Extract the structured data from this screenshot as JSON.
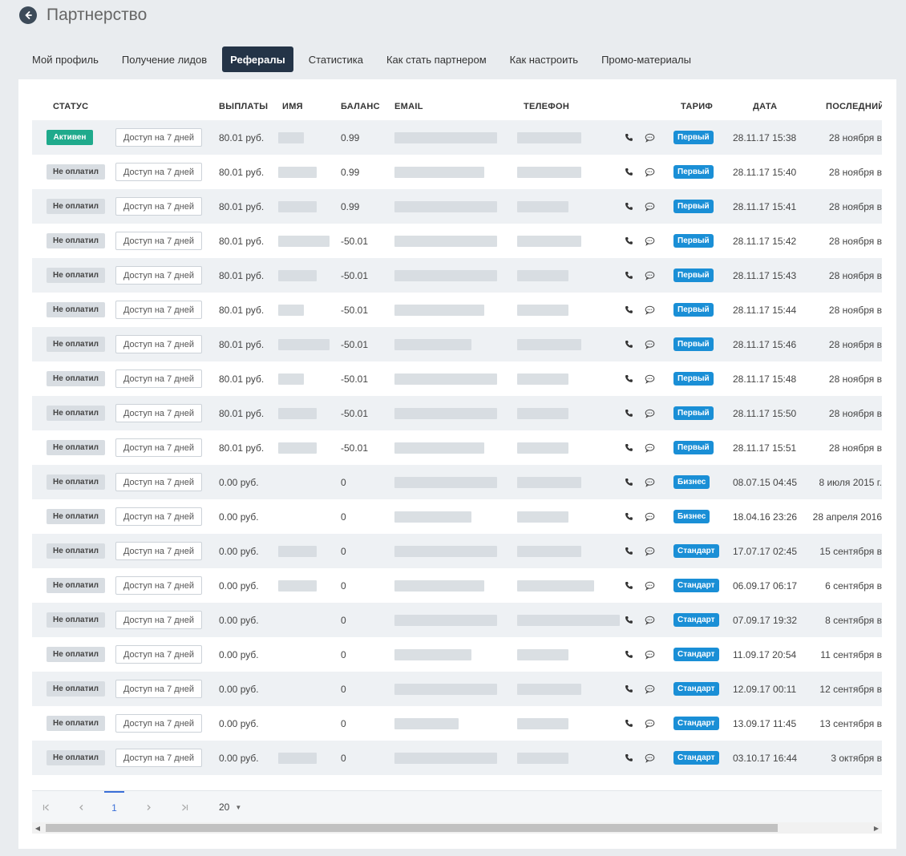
{
  "header": {
    "title": "Партнерство"
  },
  "tabs": [
    "Мой профиль",
    "Получение лидов",
    "Рефералы",
    "Статистика",
    "Как стать партнером",
    "Как настроить",
    "Промо-материалы"
  ],
  "active_tab": "Рефералы",
  "columns": {
    "status": "СТАТУС",
    "payouts": "ВЫПЛАТЫ",
    "name": "ИМЯ",
    "balance": "БАЛАНС",
    "email": "EMAIL",
    "phone": "ТЕЛЕФОН",
    "tariff": "ТАРИФ",
    "date": "ДАТА",
    "last": "ПОСЛЕДНИЙ"
  },
  "access_label": "Доступ на 7 дней",
  "rows": [
    {
      "status": "Активен",
      "status_type": "active",
      "payout": "80.01 руб.",
      "balance": "0.99",
      "tariff": "Первый",
      "date": "28.11.17 15:38",
      "last": "28 ноября в"
    },
    {
      "status": "Не оплатил",
      "status_type": "unpaid",
      "payout": "80.01 руб.",
      "balance": "0.99",
      "tariff": "Первый",
      "date": "28.11.17 15:40",
      "last": "28 ноября в"
    },
    {
      "status": "Не оплатил",
      "status_type": "unpaid",
      "payout": "80.01 руб.",
      "balance": "0.99",
      "tariff": "Первый",
      "date": "28.11.17 15:41",
      "last": "28 ноября в"
    },
    {
      "status": "Не оплатил",
      "status_type": "unpaid",
      "payout": "80.01 руб.",
      "balance": "-50.01",
      "tariff": "Первый",
      "date": "28.11.17 15:42",
      "last": "28 ноября в"
    },
    {
      "status": "Не оплатил",
      "status_type": "unpaid",
      "payout": "80.01 руб.",
      "balance": "-50.01",
      "tariff": "Первый",
      "date": "28.11.17 15:43",
      "last": "28 ноября в"
    },
    {
      "status": "Не оплатил",
      "status_type": "unpaid",
      "payout": "80.01 руб.",
      "balance": "-50.01",
      "tariff": "Первый",
      "date": "28.11.17 15:44",
      "last": "28 ноября в"
    },
    {
      "status": "Не оплатил",
      "status_type": "unpaid",
      "payout": "80.01 руб.",
      "balance": "-50.01",
      "tariff": "Первый",
      "date": "28.11.17 15:46",
      "last": "28 ноября в"
    },
    {
      "status": "Не оплатил",
      "status_type": "unpaid",
      "payout": "80.01 руб.",
      "balance": "-50.01",
      "tariff": "Первый",
      "date": "28.11.17 15:48",
      "last": "28 ноября в"
    },
    {
      "status": "Не оплатил",
      "status_type": "unpaid",
      "payout": "80.01 руб.",
      "balance": "-50.01",
      "tariff": "Первый",
      "date": "28.11.17 15:50",
      "last": "28 ноября в"
    },
    {
      "status": "Не оплатил",
      "status_type": "unpaid",
      "payout": "80.01 руб.",
      "balance": "-50.01",
      "tariff": "Первый",
      "date": "28.11.17 15:51",
      "last": "28 ноября в"
    },
    {
      "status": "Не оплатил",
      "status_type": "unpaid",
      "payout": "0.00 руб.",
      "balance": "0",
      "tariff": "Бизнес",
      "date": "08.07.15 04:45",
      "last": "8 июля 2015 г."
    },
    {
      "status": "Не оплатил",
      "status_type": "unpaid",
      "payout": "0.00 руб.",
      "balance": "0",
      "tariff": "Бизнес",
      "date": "18.04.16 23:26",
      "last": "28 апреля 2016"
    },
    {
      "status": "Не оплатил",
      "status_type": "unpaid",
      "payout": "0.00 руб.",
      "balance": "0",
      "tariff": "Стандарт",
      "date": "17.07.17 02:45",
      "last": "15 сентября в"
    },
    {
      "status": "Не оплатил",
      "status_type": "unpaid",
      "payout": "0.00 руб.",
      "balance": "0",
      "tariff": "Стандарт",
      "date": "06.09.17 06:17",
      "last": "6 сентября в"
    },
    {
      "status": "Не оплатил",
      "status_type": "unpaid",
      "payout": "0.00 руб.",
      "balance": "0",
      "tariff": "Стандарт",
      "date": "07.09.17 19:32",
      "last": "8 сентября в"
    },
    {
      "status": "Не оплатил",
      "status_type": "unpaid",
      "payout": "0.00 руб.",
      "balance": "0",
      "tariff": "Стандарт",
      "date": "11.09.17 20:54",
      "last": "11 сентября в"
    },
    {
      "status": "Не оплатил",
      "status_type": "unpaid",
      "payout": "0.00 руб.",
      "balance": "0",
      "tariff": "Стандарт",
      "date": "12.09.17 00:11",
      "last": "12 сентября в"
    },
    {
      "status": "Не оплатил",
      "status_type": "unpaid",
      "payout": "0.00 руб.",
      "balance": "0",
      "tariff": "Стандарт",
      "date": "13.09.17 11:45",
      "last": "13 сентября в"
    },
    {
      "status": "Не оплатил",
      "status_type": "unpaid",
      "payout": "0.00 руб.",
      "balance": "0",
      "tariff": "Стандарт",
      "date": "03.10.17 16:44",
      "last": "3 октября в"
    }
  ],
  "pagination": {
    "current_page": "1",
    "page_size": "20"
  },
  "colors": {
    "active_tab_bg": "#243447",
    "status_active": "#1faa8c",
    "tariff": "#1a8fd6",
    "pager_accent": "#3a6fd8"
  },
  "icons": {
    "back": "arrow-left-circle-icon",
    "call": "phone-icon",
    "chat": "chat-bubble-icon"
  }
}
